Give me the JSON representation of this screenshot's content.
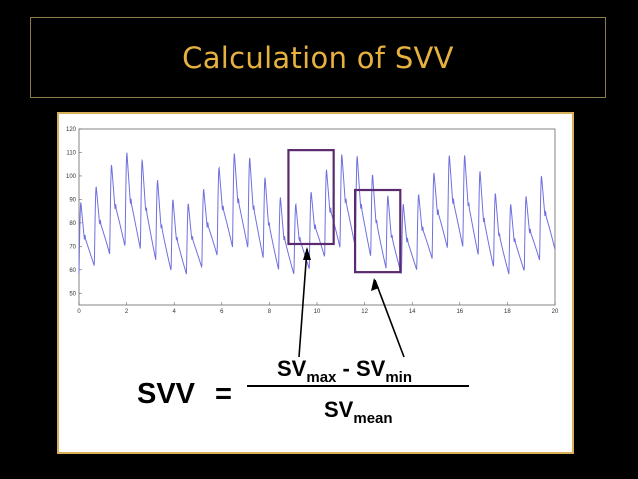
{
  "slide": {
    "title": "Calculation of SVV"
  },
  "chart_data": {
    "type": "line",
    "title": "",
    "xlabel": "",
    "ylabel": "",
    "xlim": [
      0,
      20
    ],
    "ylim": [
      45,
      120
    ],
    "x_ticks": [
      "0",
      "2",
      "4",
      "6",
      "8",
      "10",
      "12",
      "14",
      "16",
      "18",
      "20"
    ],
    "y_ticks": [
      "50",
      "60",
      "70",
      "80",
      "90",
      "100",
      "110",
      "120"
    ],
    "grid": false,
    "line_color": "#6f6fe0",
    "series_note_beats_per_second": 1.55,
    "series": [
      {
        "peak_pattern": "oscillating",
        "peak_min": 88,
        "peak_max": 110,
        "trough_min": 58,
        "trough_max": 70
      }
    ],
    "annotations": {
      "max_box": {
        "x": [
          8.8,
          10.7
        ],
        "y": [
          71,
          111
        ]
      },
      "min_box": {
        "x": [
          11.6,
          13.5
        ],
        "y": [
          59,
          94
        ]
      },
      "box_color": "#5b2a6e"
    }
  },
  "formula": {
    "lhs": "SVV",
    "equals": "=",
    "num_sv1": "SV",
    "num_sub1": "max",
    "minus": " - ",
    "num_sv2": "SV",
    "num_sub2": "min",
    "den_sv": "SV",
    "den_sub": "mean"
  }
}
